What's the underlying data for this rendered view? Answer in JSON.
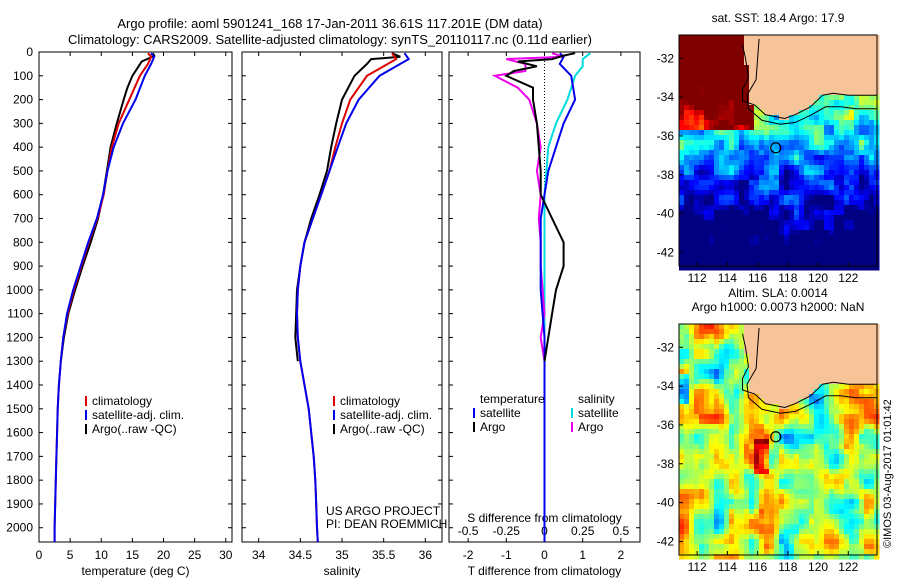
{
  "header": {
    "line1": "Argo profile: aoml 5901241_168 17-Jan-2011 36.61S 117.201E (DM data)",
    "line2": "Climatology: CARS2009. Satellite-adjusted climatology: synTS_20110117.nc (0.11d earlier)"
  },
  "colors": {
    "climatology": "#dd0000",
    "satellite": "#0000ee",
    "argo": "#000000",
    "argo_salinity": "#ee00ee",
    "satellite_salinity": "#00dddd",
    "land": "#f7c499"
  },
  "chart_data": [
    {
      "type": "line",
      "id": "temperature",
      "xlabel": "temperature (deg C)",
      "ylabel": "",
      "xlim": [
        0,
        31
      ],
      "ylim": [
        2060,
        0
      ],
      "xticks": [
        0,
        5,
        10,
        15,
        20,
        25,
        30
      ],
      "yticks": [
        0,
        100,
        200,
        300,
        400,
        500,
        600,
        700,
        800,
        900,
        1000,
        1100,
        1200,
        1300,
        1400,
        1500,
        1600,
        1700,
        1800,
        1900,
        2000
      ],
      "legend": [
        {
          "label": "climatology",
          "color": "#dd0000"
        },
        {
          "label": "satellite-adj. clim.",
          "color": "#0000ee"
        },
        {
          "label": "Argo(..raw -QC)",
          "color": "#000000"
        }
      ],
      "series": [
        {
          "name": "climatology",
          "color": "#dd0000",
          "points": [
            [
              17.5,
              5
            ],
            [
              18,
              20
            ],
            [
              17.5,
              50
            ],
            [
              16.2,
              100
            ],
            [
              14.5,
              200
            ],
            [
              12.8,
              300
            ],
            [
              11.7,
              400
            ],
            [
              11,
              500
            ],
            [
              10.4,
              600
            ],
            [
              9.4,
              700
            ],
            [
              8,
              800
            ],
            [
              6.8,
              900
            ],
            [
              5.6,
              1000
            ],
            [
              4.6,
              1100
            ],
            [
              3.9,
              1200
            ],
            [
              3.5,
              1300
            ],
            [
              3.2,
              1400
            ],
            [
              3,
              1500
            ],
            [
              2.9,
              1600
            ],
            [
              2.8,
              1700
            ],
            [
              2.7,
              1800
            ],
            [
              2.6,
              1900
            ],
            [
              2.5,
              2000
            ],
            [
              2.5,
              2060
            ]
          ]
        },
        {
          "name": "satellite-adj. clim.",
          "color": "#0000ee",
          "points": [
            [
              18,
              5
            ],
            [
              18.5,
              20
            ],
            [
              18,
              50
            ],
            [
              17,
              100
            ],
            [
              15.5,
              200
            ],
            [
              13.5,
              300
            ],
            [
              12,
              400
            ],
            [
              11,
              500
            ],
            [
              10.3,
              600
            ],
            [
              9.3,
              700
            ],
            [
              7.9,
              800
            ],
            [
              6.7,
              900
            ],
            [
              5.5,
              1000
            ],
            [
              4.5,
              1100
            ],
            [
              3.9,
              1200
            ],
            [
              3.5,
              1300
            ],
            [
              3.2,
              1400
            ],
            [
              3,
              1500
            ],
            [
              2.9,
              1600
            ],
            [
              2.8,
              1700
            ],
            [
              2.7,
              1800
            ],
            [
              2.6,
              1900
            ],
            [
              2.5,
              2000
            ],
            [
              2.5,
              2060
            ]
          ]
        },
        {
          "name": "Argo",
          "color": "#000000",
          "points": [
            [
              18.3,
              5
            ],
            [
              18.5,
              15
            ],
            [
              17.8,
              25
            ],
            [
              16.5,
              40
            ],
            [
              16,
              60
            ],
            [
              15,
              100
            ],
            [
              14.2,
              150
            ],
            [
              13.6,
              200
            ],
            [
              12.5,
              300
            ],
            [
              11.5,
              400
            ],
            [
              10.9,
              500
            ],
            [
              10.3,
              600
            ],
            [
              9.5,
              700
            ],
            [
              8.3,
              800
            ],
            [
              7,
              900
            ],
            [
              5.8,
              1000
            ],
            [
              4.7,
              1100
            ],
            [
              4,
              1200
            ],
            [
              3.5,
              1300
            ]
          ]
        }
      ]
    },
    {
      "type": "line",
      "id": "salinity",
      "xlabel": "salinity",
      "ylabel": "",
      "xlim": [
        33.8,
        36.2
      ],
      "ylim": [
        2060,
        0
      ],
      "xticks": [
        34,
        34.5,
        35,
        35.5,
        36
      ],
      "legend": [
        {
          "label": "climatology",
          "color": "#dd0000"
        },
        {
          "label": "satellite-adj. clim.",
          "color": "#0000ee"
        },
        {
          "label": "Argo(..raw -QC)",
          "color": "#000000"
        }
      ],
      "annotation": [
        "US ARGO PROJECT",
        "PI: DEAN ROEMMICH"
      ],
      "series": [
        {
          "name": "climatology",
          "color": "#dd0000",
          "points": [
            [
              35.6,
              5
            ],
            [
              35.65,
              30
            ],
            [
              35.5,
              60
            ],
            [
              35.3,
              100
            ],
            [
              35.1,
              200
            ],
            [
              35,
              300
            ],
            [
              34.92,
              400
            ],
            [
              34.85,
              500
            ],
            [
              34.75,
              600
            ],
            [
              34.65,
              700
            ],
            [
              34.55,
              800
            ],
            [
              34.5,
              900
            ],
            [
              34.47,
              1000
            ],
            [
              34.46,
              1100
            ],
            [
              34.47,
              1200
            ],
            [
              34.5,
              1300
            ],
            [
              34.55,
              1400
            ],
            [
              34.6,
              1500
            ],
            [
              34.63,
              1600
            ],
            [
              34.66,
              1700
            ],
            [
              34.68,
              1800
            ],
            [
              34.69,
              1900
            ],
            [
              34.7,
              2000
            ],
            [
              34.71,
              2060
            ]
          ]
        },
        {
          "name": "satellite-adj. clim.",
          "color": "#0000ee",
          "points": [
            [
              35.75,
              5
            ],
            [
              35.8,
              30
            ],
            [
              35.65,
              60
            ],
            [
              35.45,
              100
            ],
            [
              35.2,
              200
            ],
            [
              35.05,
              300
            ],
            [
              34.95,
              400
            ],
            [
              34.85,
              500
            ],
            [
              34.75,
              600
            ],
            [
              34.65,
              700
            ],
            [
              34.55,
              800
            ],
            [
              34.5,
              900
            ],
            [
              34.47,
              1000
            ],
            [
              34.46,
              1100
            ],
            [
              34.47,
              1200
            ],
            [
              34.5,
              1300
            ],
            [
              34.55,
              1400
            ],
            [
              34.6,
              1500
            ],
            [
              34.63,
              1600
            ],
            [
              34.66,
              1700
            ],
            [
              34.68,
              1800
            ],
            [
              34.69,
              1900
            ],
            [
              34.7,
              2000
            ],
            [
              34.71,
              2060
            ]
          ]
        },
        {
          "name": "Argo",
          "color": "#000000",
          "points": [
            [
              35.6,
              5
            ],
            [
              35.7,
              20
            ],
            [
              35.35,
              30
            ],
            [
              35.3,
              50
            ],
            [
              35.15,
              100
            ],
            [
              35,
              200
            ],
            [
              34.93,
              300
            ],
            [
              34.87,
              400
            ],
            [
              34.82,
              500
            ],
            [
              34.73,
              600
            ],
            [
              34.63,
              700
            ],
            [
              34.55,
              800
            ],
            [
              34.5,
              900
            ],
            [
              34.46,
              1000
            ],
            [
              34.45,
              1100
            ],
            [
              34.44,
              1200
            ],
            [
              34.47,
              1300
            ]
          ]
        }
      ]
    },
    {
      "type": "line",
      "id": "difference",
      "xlabel": "T difference from climatology",
      "xlabel2": "S difference from climatology",
      "ylabel": "",
      "xlim": [
        -2.5,
        2.5
      ],
      "ylim": [
        2060,
        0
      ],
      "xticks": [
        -2,
        -1,
        0,
        1,
        2
      ],
      "xticks2": [
        "-0.5",
        "-0.25",
        "0",
        "0.25",
        "0.5"
      ],
      "legend": [
        {
          "label": "temperature",
          "color": ""
        },
        {
          "label": "satellite",
          "color": "#0000ee"
        },
        {
          "label": "Argo",
          "color": "#000000"
        },
        {
          "label": "salinity",
          "color": ""
        },
        {
          "label": "satellite",
          "color": "#00dddd"
        },
        {
          "label": "Argo",
          "color": "#ee00ee"
        }
      ],
      "series": [
        {
          "name": "satellite",
          "color": "#0000ee",
          "points": [
            [
              0.4,
              5
            ],
            [
              0.5,
              20
            ],
            [
              0.4,
              50
            ],
            [
              0.7,
              100
            ],
            [
              0.8,
              200
            ],
            [
              0.5,
              300
            ],
            [
              0.3,
              400
            ],
            [
              0.1,
              500
            ],
            [
              0,
              600
            ],
            [
              -0.1,
              700
            ],
            [
              -0.1,
              800
            ],
            [
              -0.1,
              900
            ],
            [
              -0.1,
              1000
            ],
            [
              -0.05,
              1100
            ],
            [
              0,
              1200
            ],
            [
              0,
              1300
            ],
            [
              0,
              1400
            ],
            [
              0,
              1600
            ],
            [
              0,
              2060
            ]
          ]
        },
        {
          "name": "Argo",
          "color": "#000000",
          "points": [
            [
              0.8,
              5
            ],
            [
              0.5,
              15
            ],
            [
              0.2,
              30
            ],
            [
              -0.7,
              40
            ],
            [
              -0.2,
              60
            ],
            [
              -0.8,
              80
            ],
            [
              -1,
              100
            ],
            [
              -0.3,
              150
            ],
            [
              -0.3,
              200
            ],
            [
              -0.2,
              300
            ],
            [
              -0.15,
              400
            ],
            [
              -0.1,
              500
            ],
            [
              -0.1,
              600
            ],
            [
              0.2,
              700
            ],
            [
              0.5,
              800
            ],
            [
              0.5,
              900
            ],
            [
              0.3,
              1000
            ],
            [
              0.2,
              1100
            ],
            [
              0.1,
              1200
            ],
            [
              0,
              1300
            ]
          ]
        },
        {
          "name": "satellite",
          "color": "#00dddd",
          "points": [
            [
              1.2,
              5
            ],
            [
              1,
              30
            ],
            [
              1,
              60
            ],
            [
              0.8,
              100
            ],
            [
              0.6,
              200
            ],
            [
              0.3,
              300
            ],
            [
              0.1,
              400
            ],
            [
              0,
              600
            ],
            [
              0,
              800
            ],
            [
              0,
              1000
            ],
            [
              0,
              1200
            ],
            [
              0,
              1400
            ],
            [
              0,
              1600
            ],
            [
              0,
              1800
            ],
            [
              0,
              2060
            ]
          ]
        },
        {
          "name": "Argo",
          "color": "#ee00ee",
          "points": [
            [
              0.2,
              5
            ],
            [
              0.5,
              20
            ],
            [
              -1,
              30
            ],
            [
              -0.5,
              50
            ],
            [
              -0.5,
              80
            ],
            [
              -1.3,
              100
            ],
            [
              -0.7,
              150
            ],
            [
              -0.4,
              200
            ],
            [
              -0.2,
              300
            ],
            [
              -0.1,
              400
            ],
            [
              -0.2,
              500
            ],
            [
              -0.1,
              600
            ],
            [
              -0.15,
              700
            ],
            [
              -0.1,
              800
            ],
            [
              -0.1,
              900
            ],
            [
              -0.05,
              1000
            ],
            [
              0,
              1100
            ],
            [
              -0.1,
              1200
            ],
            [
              0,
              1300
            ]
          ]
        }
      ]
    },
    {
      "type": "heatmap",
      "id": "sst-map",
      "title": "sat. SST: 18.4  Argo: 17.9",
      "xlim": [
        110.8,
        123.9
      ],
      "ylim": [
        -42.7,
        -30.8
      ],
      "xticks": [
        112,
        114,
        116,
        118,
        120,
        122
      ],
      "yticks": [
        -32,
        -34,
        -36,
        -38,
        -40,
        -42
      ],
      "marker": {
        "lon": 117.201,
        "lat": -36.61
      }
    },
    {
      "type": "heatmap",
      "id": "sla-map",
      "title": "Altim. SLA: 0.0014",
      "subtitle": "Argo h1000: 0.0073 h2000: NaN",
      "xlim": [
        110.8,
        123.9
      ],
      "ylim": [
        -42.7,
        -30.8
      ],
      "xticks": [
        112,
        114,
        116,
        118,
        120,
        122
      ],
      "yticks": [
        -32,
        -34,
        -36,
        -38,
        -40,
        -42
      ],
      "marker": {
        "lon": 117.201,
        "lat": -36.61
      }
    }
  ],
  "footer": {
    "credit": "©IMOS 03-Aug-2017 01:01:42"
  }
}
